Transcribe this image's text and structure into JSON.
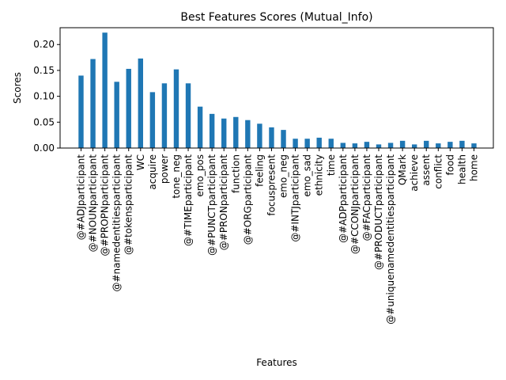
{
  "chart_data": {
    "type": "bar",
    "title": "Best Features Scores (Mutual_Info)",
    "xlabel": "Features",
    "ylabel": "Scores",
    "ylim": [
      0,
      0.2325
    ],
    "yticks": [
      "0.00",
      "0.05",
      "0.10",
      "0.15",
      "0.20"
    ],
    "bar_color": "#1f77b4",
    "categories": [
      "@#ADJparticipant",
      "@#NOUNparticipant",
      "@#PROPNparticipant",
      "@#namedentitiesparticipant",
      "@#tokensparticipant",
      "WC",
      "acquire",
      "power",
      "tone_neg",
      "@#TIMEparticipant",
      "emo_pos",
      "@#PUNCTparticipant",
      "@#PRONparticipant",
      "function",
      "@#ORGparticipant",
      "feeling",
      "focuspresent",
      "emo_neg",
      "@#INTJparticipant",
      "emo_sad",
      "ethnicity",
      "time",
      "@#ADPparticipant",
      "@#CCONJparticipant",
      "@#FACparticipant",
      "@#PRODUCTparticipant",
      "@#uniquenamedentitiesparticipant",
      "QMark",
      "achieve",
      "assent",
      "conflict",
      "food",
      "health",
      "home"
    ],
    "values": [
      0.14,
      0.172,
      0.223,
      0.128,
      0.153,
      0.173,
      0.108,
      0.125,
      0.152,
      0.125,
      0.08,
      0.066,
      0.057,
      0.06,
      0.054,
      0.047,
      0.04,
      0.035,
      0.018,
      0.018,
      0.02,
      0.018,
      0.01,
      0.009,
      0.012,
      0.007,
      0.01,
      0.014,
      0.007,
      0.014,
      0.009,
      0.012,
      0.014,
      0.009
    ]
  }
}
